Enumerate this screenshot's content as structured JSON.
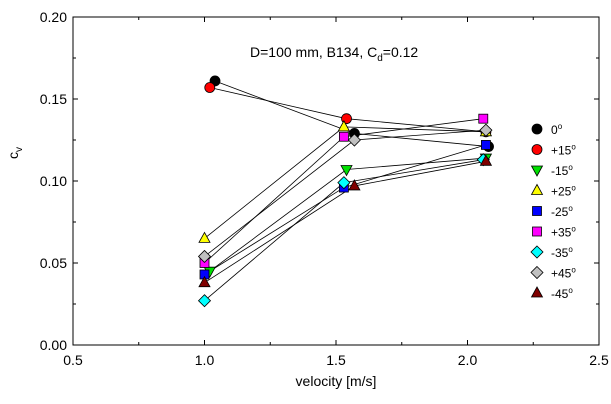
{
  "chart_data": {
    "type": "scatter",
    "annotation": {
      "prefix": "D=100 mm, B134, C",
      "subscript": "d",
      "suffix": "=0.12"
    },
    "xlabel": "velocity [m/s]",
    "ylabel": {
      "main": "c",
      "subscript": "v"
    },
    "xlim": [
      0.5,
      2.5
    ],
    "ylim": [
      0.0,
      0.2
    ],
    "xticks": [
      "0.5",
      "1.0",
      "1.5",
      "2.0",
      "2.5"
    ],
    "yticks": [
      "0.00",
      "0.05",
      "0.10",
      "0.15",
      "0.20"
    ],
    "grid": false,
    "legend_position": "right",
    "series": [
      {
        "name": "0",
        "marker": "circle",
        "color": "#000000",
        "points": [
          [
            1.04,
            0.161
          ],
          [
            1.57,
            0.129
          ],
          [
            2.08,
            0.121
          ]
        ]
      },
      {
        "name": "+15",
        "marker": "circle",
        "color": "#ff0000",
        "points": [
          [
            1.02,
            0.157
          ],
          [
            1.54,
            0.138
          ],
          [
            2.07,
            0.13
          ]
        ]
      },
      {
        "name": "-15",
        "marker": "triangle-down",
        "color": "#00e000",
        "points": [
          [
            1.02,
            0.045
          ],
          [
            1.54,
            0.107
          ],
          [
            2.07,
            0.114
          ]
        ]
      },
      {
        "name": "+25",
        "marker": "triangle-up",
        "color": "#ffff00",
        "points": [
          [
            1.0,
            0.065
          ],
          [
            1.53,
            0.133
          ],
          [
            2.07,
            0.13
          ]
        ]
      },
      {
        "name": "-25",
        "marker": "square",
        "color": "#0000ff",
        "points": [
          [
            1.0,
            0.043
          ],
          [
            1.53,
            0.096
          ],
          [
            2.07,
            0.122
          ]
        ]
      },
      {
        "name": "+35",
        "marker": "square",
        "color": "#ff00ff",
        "points": [
          [
            1.0,
            0.05
          ],
          [
            1.53,
            0.127
          ],
          [
            2.06,
            0.138
          ]
        ]
      },
      {
        "name": "-35",
        "marker": "diamond",
        "color": "#00ffff",
        "points": [
          [
            1.0,
            0.027
          ],
          [
            1.53,
            0.099
          ],
          [
            2.06,
            0.113
          ]
        ]
      },
      {
        "name": "+45",
        "marker": "diamond",
        "color": "#c0c0c0",
        "points": [
          [
            1.0,
            0.054
          ],
          [
            1.57,
            0.125
          ],
          [
            2.07,
            0.131
          ]
        ]
      },
      {
        "name": "-45",
        "marker": "triangle-up",
        "color": "#800000",
        "points": [
          [
            1.0,
            0.038
          ],
          [
            1.57,
            0.097
          ],
          [
            2.07,
            0.112
          ]
        ]
      }
    ]
  }
}
